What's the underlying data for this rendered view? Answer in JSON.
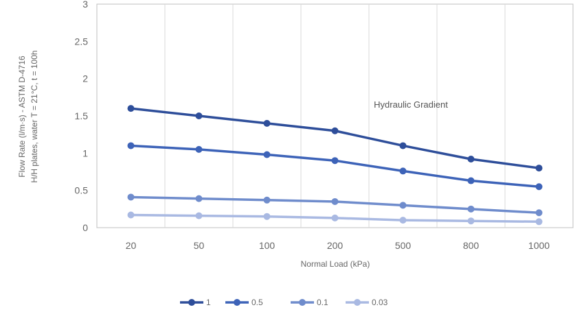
{
  "chart_data": {
    "type": "line",
    "ylabel_lines": [
      "Flow Rate (l/m·s) - ASTM D-4716",
      "H/H plates, water T = 21°C, t = 100h"
    ],
    "xlabel": "Normal Load (kPa)",
    "annotation": "Hydraulic Gradient",
    "categories": [
      "20",
      "50",
      "100",
      "200",
      "500",
      "800",
      "1000"
    ],
    "ylim": [
      0,
      3
    ],
    "yticks": [
      "0",
      "0.5",
      "1",
      "1.5",
      "2",
      "2.5",
      "3"
    ],
    "grid": "vertical",
    "legend_position": "bottom",
    "series": [
      {
        "name": "1",
        "color": "#2e4e9a",
        "values": [
          1.6,
          1.5,
          1.4,
          1.3,
          1.1,
          0.92,
          0.8
        ]
      },
      {
        "name": "0.5",
        "color": "#3d63b8",
        "values": [
          1.1,
          1.05,
          0.98,
          0.9,
          0.76,
          0.63,
          0.55
        ]
      },
      {
        "name": "0.1",
        "color": "#6f8ccc",
        "values": [
          0.41,
          0.39,
          0.37,
          0.35,
          0.3,
          0.25,
          0.2
        ]
      },
      {
        "name": "0.03",
        "color": "#a9b9e2",
        "values": [
          0.17,
          0.16,
          0.15,
          0.13,
          0.1,
          0.09,
          0.08
        ]
      }
    ]
  }
}
